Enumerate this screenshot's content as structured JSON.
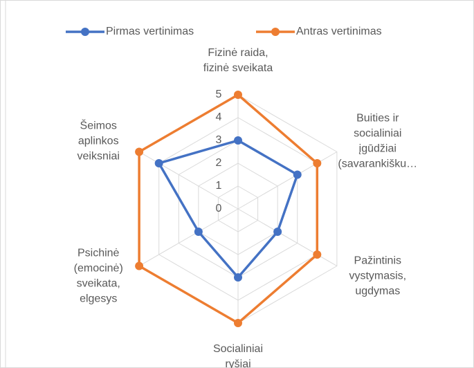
{
  "chart_data": {
    "type": "radar",
    "categories": [
      [
        "Fizinė raida,",
        "fizinė sveikata"
      ],
      [
        "Buities ir",
        "socialiniai",
        "įgūdžiai",
        "(savarankišku…"
      ],
      [
        "Pažintinis",
        "vystymasis,",
        "ugdymas"
      ],
      [
        "Socialiniai",
        "ryšiai"
      ],
      [
        "Psichinė",
        "(emocinė)",
        "sveikata,",
        "elgesys"
      ],
      [
        "Šeimos",
        "aplinkos",
        "veiksniai"
      ]
    ],
    "series": [
      {
        "name": "Pirmas vertinimas",
        "color": "#4472c4",
        "values": [
          3,
          3,
          2,
          3,
          2,
          4
        ]
      },
      {
        "name": "Antras vertinimas",
        "color": "#ed7d31",
        "values": [
          5,
          4,
          4,
          5,
          5,
          5
        ]
      }
    ],
    "ylim": [
      0,
      5
    ],
    "yticks": [
      0,
      1,
      2,
      3,
      4,
      5
    ],
    "grid": true,
    "legend": "top"
  }
}
